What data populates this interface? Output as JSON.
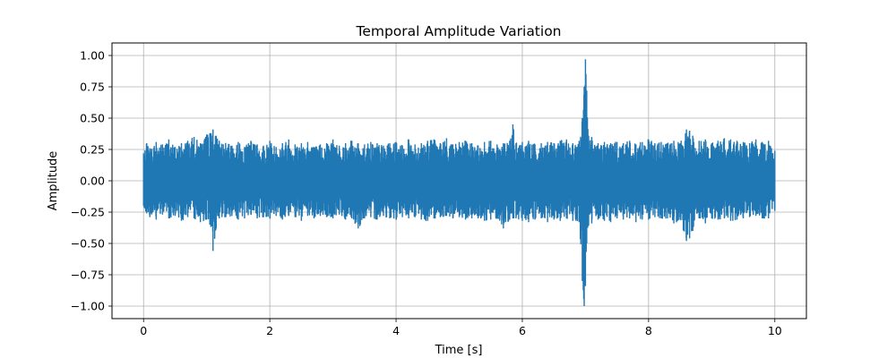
{
  "chart_data": {
    "type": "line",
    "title": "Temporal Amplitude Variation",
    "xlabel": "Time [s]",
    "ylabel": "Amplitude",
    "xlim": [
      -0.5,
      10.5
    ],
    "ylim": [
      -1.1,
      1.1
    ],
    "xticks": [
      0,
      2,
      4,
      6,
      8,
      10
    ],
    "yticks": [
      -1.0,
      -0.75,
      -0.5,
      -0.25,
      0.0,
      0.25,
      0.5,
      0.75,
      1.0
    ],
    "xtick_labels": [
      "0",
      "2",
      "4",
      "6",
      "8",
      "10"
    ],
    "ytick_labels": [
      "−1.00",
      "−0.75",
      "−0.50",
      "−0.25",
      "0.00",
      "0.25",
      "0.50",
      "0.75",
      "1.00"
    ],
    "grid": true,
    "series_color": "#1f77b4",
    "series": [
      {
        "description": "dense noisy signal, envelope per sample point",
        "x": [
          0.0,
          0.05,
          0.1,
          0.2,
          0.3,
          0.4,
          0.5,
          0.6,
          0.7,
          0.8,
          0.9,
          1.0,
          1.05,
          1.1,
          1.15,
          1.2,
          1.3,
          1.4,
          1.5,
          1.6,
          1.7,
          1.8,
          1.9,
          2.0,
          2.1,
          2.2,
          2.3,
          2.4,
          2.5,
          2.6,
          2.7,
          2.8,
          2.9,
          3.0,
          3.1,
          3.2,
          3.3,
          3.4,
          3.5,
          3.6,
          3.7,
          3.8,
          3.9,
          4.0,
          4.1,
          4.2,
          4.3,
          4.4,
          4.5,
          4.6,
          4.7,
          4.8,
          4.9,
          5.0,
          5.1,
          5.2,
          5.3,
          5.4,
          5.5,
          5.6,
          5.7,
          5.8,
          5.85,
          5.9,
          6.0,
          6.1,
          6.2,
          6.3,
          6.4,
          6.5,
          6.6,
          6.7,
          6.8,
          6.9,
          6.95,
          6.98,
          7.0,
          7.02,
          7.05,
          7.1,
          7.2,
          7.3,
          7.4,
          7.5,
          7.6,
          7.7,
          7.8,
          7.9,
          8.0,
          8.1,
          8.2,
          8.3,
          8.4,
          8.5,
          8.6,
          8.65,
          8.7,
          8.8,
          8.9,
          9.0,
          9.1,
          9.2,
          9.3,
          9.4,
          9.5,
          9.6,
          9.7,
          9.8,
          9.9,
          10.0
        ],
        "max": [
          0.22,
          0.3,
          0.26,
          0.31,
          0.29,
          0.33,
          0.27,
          0.3,
          0.32,
          0.35,
          0.3,
          0.37,
          0.38,
          0.41,
          0.36,
          0.32,
          0.3,
          0.28,
          0.31,
          0.27,
          0.32,
          0.29,
          0.28,
          0.32,
          0.27,
          0.3,
          0.33,
          0.29,
          0.3,
          0.31,
          0.27,
          0.29,
          0.3,
          0.33,
          0.28,
          0.3,
          0.32,
          0.3,
          0.29,
          0.31,
          0.3,
          0.28,
          0.3,
          0.31,
          0.28,
          0.33,
          0.29,
          0.3,
          0.32,
          0.33,
          0.3,
          0.34,
          0.29,
          0.31,
          0.32,
          0.3,
          0.28,
          0.31,
          0.32,
          0.29,
          0.3,
          0.32,
          0.45,
          0.3,
          0.31,
          0.32,
          0.29,
          0.3,
          0.31,
          0.3,
          0.32,
          0.33,
          0.3,
          0.32,
          0.5,
          0.75,
          0.97,
          0.72,
          0.36,
          0.35,
          0.3,
          0.31,
          0.3,
          0.31,
          0.3,
          0.32,
          0.29,
          0.31,
          0.33,
          0.3,
          0.31,
          0.3,
          0.32,
          0.3,
          0.41,
          0.4,
          0.36,
          0.32,
          0.33,
          0.3,
          0.32,
          0.34,
          0.33,
          0.32,
          0.31,
          0.3,
          0.33,
          0.31,
          0.32,
          0.24
        ],
        "min": [
          -0.2,
          -0.26,
          -0.29,
          -0.31,
          -0.27,
          -0.3,
          -0.28,
          -0.32,
          -0.29,
          -0.3,
          -0.33,
          -0.31,
          -0.35,
          -0.56,
          -0.38,
          -0.3,
          -0.29,
          -0.28,
          -0.31,
          -0.3,
          -0.27,
          -0.3,
          -0.29,
          -0.3,
          -0.28,
          -0.31,
          -0.28,
          -0.29,
          -0.32,
          -0.28,
          -0.3,
          -0.28,
          -0.29,
          -0.3,
          -0.27,
          -0.31,
          -0.3,
          -0.38,
          -0.3,
          -0.29,
          -0.31,
          -0.28,
          -0.3,
          -0.31,
          -0.29,
          -0.3,
          -0.29,
          -0.31,
          -0.32,
          -0.3,
          -0.29,
          -0.28,
          -0.3,
          -0.29,
          -0.31,
          -0.3,
          -0.3,
          -0.32,
          -0.31,
          -0.3,
          -0.38,
          -0.31,
          -0.3,
          -0.3,
          -0.32,
          -0.33,
          -0.31,
          -0.3,
          -0.33,
          -0.31,
          -0.32,
          -0.3,
          -0.32,
          -0.33,
          -0.8,
          -1.0,
          -0.84,
          -0.5,
          -0.36,
          -0.34,
          -0.31,
          -0.32,
          -0.33,
          -0.3,
          -0.31,
          -0.3,
          -0.33,
          -0.31,
          -0.31,
          -0.29,
          -0.3,
          -0.3,
          -0.34,
          -0.31,
          -0.48,
          -0.46,
          -0.4,
          -0.3,
          -0.34,
          -0.3,
          -0.31,
          -0.3,
          -0.32,
          -0.31,
          -0.3,
          -0.29,
          -0.28,
          -0.3,
          -0.3,
          -0.24
        ]
      }
    ]
  }
}
